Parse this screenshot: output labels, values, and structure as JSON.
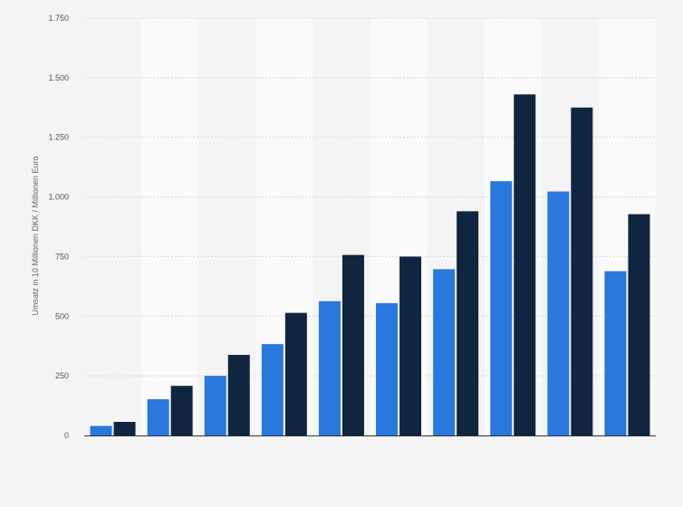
{
  "chart_data": {
    "type": "bar",
    "ylabel": "Umsatz in 10 Millionen DKK / Millionen Euro",
    "ylim": [
      0,
      1750
    ],
    "yticks": [
      0,
      250,
      500,
      750,
      1000,
      1250,
      1500,
      1750
    ],
    "ytick_labels": [
      "0",
      "250",
      "500",
      "750",
      "1.000",
      "1.250",
      "1.500",
      "1.750"
    ],
    "grid": true,
    "categories": [
      "",
      "",
      "",
      "",
      "",
      "",
      "",
      "",
      "",
      ""
    ],
    "series": [
      {
        "color": "#2878de",
        "values": [
          40,
          152,
          250,
          383,
          563,
          555,
          697,
          1066,
          1023,
          689
        ]
      },
      {
        "color": "#0f2540",
        "values": [
          57,
          208,
          338,
          514,
          757,
          750,
          940,
          1430,
          1375,
          928
        ]
      }
    ]
  }
}
